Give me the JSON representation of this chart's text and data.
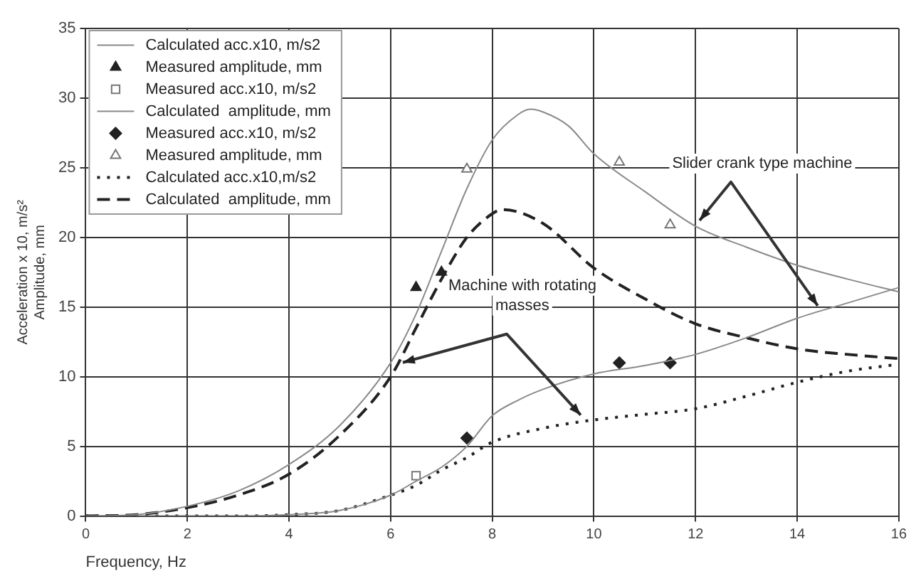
{
  "chart_data": {
    "type": "line",
    "xlabel": "Frequency, Hz",
    "ylabel": "Acceleration x 10, m/s²\nAmplitude, mm",
    "xlim": [
      0,
      16
    ],
    "xticks": [
      0,
      2,
      4,
      6,
      8,
      10,
      12,
      14,
      16
    ],
    "ylim": [
      0,
      35
    ],
    "yticks": [
      0,
      5,
      10,
      15,
      20,
      25,
      30,
      35
    ],
    "grid": true,
    "legend": "top left",
    "series": [
      {
        "name": "Calculated acc.x10, m/s2",
        "type": "line",
        "color": "#8a8a8a",
        "marker": "none",
        "line_style": "solid",
        "x": [
          1,
          2,
          3,
          4,
          5,
          6,
          6.5,
          7,
          7.5,
          8,
          8.5,
          9,
          10,
          11,
          12,
          13,
          14,
          15,
          16
        ],
        "values": [
          0,
          0,
          0,
          0.1,
          0.4,
          1.5,
          2.5,
          3.5,
          5,
          7.2,
          8.3,
          9.1,
          10.2,
          10.8,
          11.6,
          12.8,
          14.2,
          15.3,
          16.4
        ]
      },
      {
        "name": "Measured amplitude, mm",
        "type": "scatter",
        "color": "#222222",
        "marker": "triangle",
        "x": [
          6.5,
          7
        ],
        "values": [
          16.4,
          17.5
        ]
      },
      {
        "name": "Measured acc.x10, m/s2",
        "type": "scatter",
        "color": "#777777",
        "marker": "square-open",
        "x": [
          6.5
        ],
        "values": [
          2.9
        ]
      },
      {
        "name": "Calculated  amplitude, mm",
        "type": "line",
        "color": "#8a8a8a",
        "marker": "none",
        "line_style": "solid",
        "x": [
          0,
          1,
          2,
          3,
          4,
          5,
          6,
          6.5,
          7,
          7.5,
          8,
          8.5,
          8.75,
          9,
          9.5,
          10,
          11,
          12,
          13,
          14,
          15,
          16
        ],
        "values": [
          0,
          0.1,
          0.7,
          1.8,
          3.7,
          6.5,
          11,
          14.5,
          19,
          23.5,
          27,
          28.8,
          29.2,
          29,
          28,
          26,
          23.3,
          20.8,
          19.3,
          18,
          17,
          16.1
        ]
      },
      {
        "name": "Measured acc.x10, m/s2",
        "type": "scatter",
        "color": "#222222",
        "marker": "diamond",
        "x": [
          7.5,
          10.5,
          11.5
        ],
        "values": [
          5.6,
          11,
          11
        ]
      },
      {
        "name": "Measured amplitude, mm",
        "type": "scatter",
        "color": "#777777",
        "marker": "triangle-open",
        "x": [
          7.5,
          10.5,
          11.5
        ],
        "values": [
          24.9,
          25.4,
          20.9
        ]
      },
      {
        "name": "Calculated acc.x10,m/s2",
        "type": "line",
        "color": "#222222",
        "marker": "none",
        "line_style": "dotted",
        "x": [
          0,
          1,
          2,
          3,
          4,
          5,
          6,
          6.5,
          7,
          7.5,
          8,
          9,
          10,
          11,
          12,
          13,
          14,
          15,
          16
        ],
        "values": [
          0,
          0,
          0,
          0,
          0.1,
          0.4,
          1.5,
          2.2,
          3.3,
          4.2,
          5.3,
          6.3,
          6.9,
          7.3,
          7.7,
          8.6,
          9.6,
          10.4,
          10.9
        ]
      },
      {
        "name": "Calculated  amplitude, mm",
        "type": "line",
        "color": "#222222",
        "marker": "none",
        "line_style": "dashed",
        "x": [
          0,
          1,
          2,
          3,
          4,
          5,
          6,
          6.5,
          7,
          7.5,
          8,
          8.2,
          9,
          10,
          11,
          12,
          13,
          14,
          15,
          16
        ],
        "values": [
          0,
          0.1,
          0.6,
          1.5,
          3,
          5.8,
          10,
          13.5,
          17,
          20,
          21.7,
          22,
          21,
          17.8,
          15.6,
          13.8,
          12.8,
          12,
          11.6,
          11.3
        ]
      }
    ],
    "annotations": [
      "Slider crank type machine",
      "Machine with rotating masses"
    ]
  }
}
